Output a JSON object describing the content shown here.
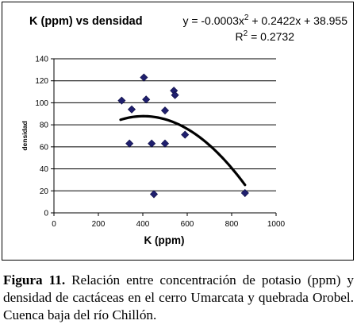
{
  "chart_data": {
    "type": "scatter",
    "title": "K (ppm) vs densidad",
    "xlabel": "K (ppm)",
    "ylabel": "densidad",
    "xlim": [
      0,
      1000
    ],
    "ylim": [
      0,
      140
    ],
    "x_ticks": [
      "0",
      "200",
      "400",
      "600",
      "800",
      "1000"
    ],
    "y_ticks": [
      "0",
      "20",
      "40",
      "60",
      "80",
      "100",
      "120",
      "140"
    ],
    "grid": "horizontal",
    "legend": "none",
    "points": [
      {
        "x": 305,
        "y": 102
      },
      {
        "x": 340,
        "y": 63
      },
      {
        "x": 350,
        "y": 94
      },
      {
        "x": 405,
        "y": 123
      },
      {
        "x": 415,
        "y": 103
      },
      {
        "x": 440,
        "y": 63
      },
      {
        "x": 450,
        "y": 17
      },
      {
        "x": 500,
        "y": 93
      },
      {
        "x": 500,
        "y": 63
      },
      {
        "x": 540,
        "y": 111
      },
      {
        "x": 545,
        "y": 107
      },
      {
        "x": 590,
        "y": 71
      },
      {
        "x": 860,
        "y": 18
      }
    ],
    "trendline": {
      "type": "polynomial",
      "degree": 2,
      "coefficients": [
        -0.0003,
        0.2422,
        38.955
      ],
      "x_range": [
        300,
        860
      ]
    },
    "equation_label": {
      "prefix": "y = -0.0003x",
      "sup": "2",
      "suffix": " + 0.2422x + 38.955"
    },
    "r2_label": {
      "prefix": "R",
      "sup": "2",
      "suffix": " = 0.2732"
    },
    "colors": {
      "marker": "#1f1f6e",
      "trend": "#000000",
      "grid": "#000000"
    }
  },
  "caption": {
    "label": "Figura 11.",
    "text": " Relación entre concentración de potasio (ppm) y densidad de cactáceas en el cerro Umarcata y quebrada Orobel. Cuenca baja del río Chillón."
  }
}
